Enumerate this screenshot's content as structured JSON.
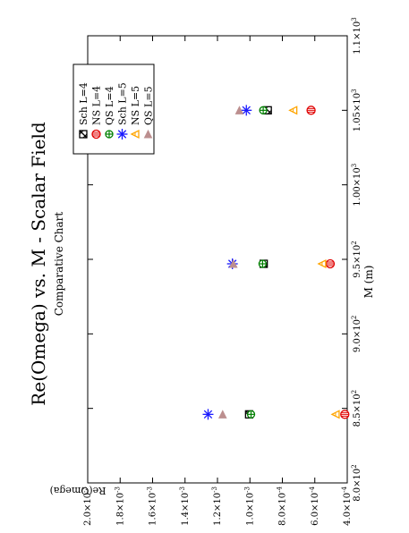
{
  "chart_data": {
    "type": "scatter",
    "orientation": "rotated-90-ccw",
    "title": "Re(Omega) vs. M - Scalar Field",
    "subtitle": "Comparative Chart",
    "xlabel": "M (m)",
    "ylabel": "Re(Omega)",
    "xlim": [
      800,
      1100
    ],
    "ylim": [
      0.0004,
      0.002
    ],
    "grid": false,
    "legend_placement": "top-left",
    "x_ticks": [
      {
        "value": 800,
        "base": "8.0×10",
        "exp": "2"
      },
      {
        "value": 850,
        "base": "8.5×10",
        "exp": "2"
      },
      {
        "value": 900,
        "base": "9.0×10",
        "exp": "2"
      },
      {
        "value": 950,
        "base": "9.5×10",
        "exp": "2"
      },
      {
        "value": 1000,
        "base": "1.00×10",
        "exp": "3"
      },
      {
        "value": 1050,
        "base": "1.05×10",
        "exp": "3"
      },
      {
        "value": 1100,
        "base": "1.1×10",
        "exp": "3"
      }
    ],
    "y_ticks": [
      {
        "value": 0.0004,
        "base": "4.0×10",
        "exp": "-4"
      },
      {
        "value": 0.0006,
        "base": "6.0×10",
        "exp": "-4"
      },
      {
        "value": 0.0008,
        "base": "8.0×10",
        "exp": "-4"
      },
      {
        "value": 0.001,
        "base": "1.0×10",
        "exp": "-3"
      },
      {
        "value": 0.0012,
        "base": "1.2×10",
        "exp": "-3"
      },
      {
        "value": 0.0014,
        "base": "1.4×10",
        "exp": "-3"
      },
      {
        "value": 0.0016,
        "base": "1.6×10",
        "exp": "-3"
      },
      {
        "value": 0.0018,
        "base": "1.8×10",
        "exp": "-3"
      },
      {
        "value": 0.002,
        "base": "2.0×10",
        "exp": "-3"
      }
    ],
    "series": [
      {
        "name": "Sch L=4",
        "marker": "square-x",
        "color": "#000000",
        "x": [
          846,
          947,
          1050
        ],
        "y": [
          0.001005,
          0.000915,
          0.00089
        ]
      },
      {
        "name": "NS L=4",
        "marker": "circle-bars",
        "color": "#e00000",
        "x": [
          846,
          947,
          1050
        ],
        "y": [
          0.000415,
          0.000505,
          0.000623
        ]
      },
      {
        "name": "QS L=4",
        "marker": "circle-plus",
        "color": "#008000",
        "x": [
          846,
          947,
          1050
        ],
        "y": [
          0.000993,
          0.000922,
          0.000918
        ]
      },
      {
        "name": "Sch L=5",
        "marker": "asterisk",
        "color": "#1a1aff",
        "x": [
          846,
          947,
          1050
        ],
        "y": [
          0.001258,
          0.001108,
          0.001022
        ]
      },
      {
        "name": "NS L=5",
        "marker": "triangle-left",
        "color": "#ffa500",
        "x": [
          846,
          947,
          1050
        ],
        "y": [
          0.000472,
          0.000555,
          0.000733
        ]
      },
      {
        "name": "QS L=5",
        "marker": "triangle-up-filled",
        "color": "#bc8f8f",
        "x": [
          846,
          947,
          1050
        ],
        "y": [
          0.001168,
          0.001102,
          0.001065
        ]
      }
    ]
  }
}
